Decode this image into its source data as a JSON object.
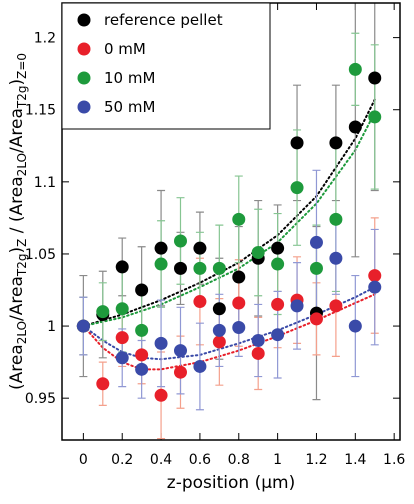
{
  "chart_data": {
    "type": "scatter",
    "xlabel": "z-position (μm)",
    "ylabel_parts": [
      "(Area",
      {
        "sub": "2LO"
      },
      "/Area",
      {
        "sub": "T2g"
      },
      ")",
      {
        "sub": "Z"
      },
      " / (Area",
      {
        "sub": "2LO"
      },
      "/Area",
      {
        "sub": "T2g"
      },
      ")",
      {
        "sub": "Z=0"
      }
    ],
    "x": [
      0,
      0.1,
      0.2,
      0.3,
      0.4,
      0.5,
      0.6,
      0.7,
      0.8,
      0.9,
      1.0,
      1.1,
      1.2,
      1.3,
      1.4,
      1.5
    ],
    "series": [
      {
        "name": "reference pellet",
        "color": "#000000",
        "error_color": "#8a8a8a",
        "values": [
          1.0,
          1.008,
          1.041,
          1.025,
          1.054,
          1.04,
          1.054,
          1.012,
          1.034,
          1.047,
          1.054,
          1.127,
          1.009,
          1.127,
          1.138,
          1.172
        ],
        "errors": [
          0.035,
          0.03,
          0.02,
          0.03,
          0.04,
          0.025,
          0.025,
          0.035,
          0.035,
          0.04,
          0.03,
          0.04,
          0.06,
          0.04,
          0.09,
          0.078
        ]
      },
      {
        "name": "0 mM",
        "color": "#e8202a",
        "error_color": "#f4a08c",
        "values": [
          1.0,
          0.96,
          0.992,
          0.98,
          0.952,
          0.968,
          1.017,
          0.989,
          1.016,
          0.981,
          1.015,
          1.018,
          1.005,
          1.014,
          null,
          1.035
        ],
        "errors": [
          0.02,
          0.015,
          0.02,
          0.02,
          0.03,
          0.025,
          0.03,
          0.03,
          0.03,
          0.025,
          0.03,
          0.03,
          0.025,
          0.035,
          null,
          0.04
        ]
      },
      {
        "name": "10 mM",
        "color": "#1e9a3c",
        "error_color": "#86c592",
        "values": [
          1.0,
          1.01,
          1.012,
          0.997,
          1.043,
          1.059,
          1.04,
          1.04,
          1.074,
          1.051,
          1.043,
          1.096,
          1.04,
          1.074,
          1.178,
          1.145
        ],
        "errors": [
          0.02,
          0.02,
          0.03,
          0.03,
          0.03,
          0.03,
          0.025,
          0.03,
          0.03,
          0.03,
          0.035,
          0.04,
          0.03,
          0.05,
          0.025,
          0.05
        ]
      },
      {
        "name": "50 mM",
        "color": "#3a4aa8",
        "error_color": "#9098d4",
        "values": [
          1.0,
          null,
          0.978,
          0.97,
          0.988,
          0.983,
          0.972,
          0.997,
          0.999,
          0.99,
          0.994,
          1.014,
          1.058,
          1.047,
          1.0,
          1.027
        ],
        "errors": [
          0.02,
          null,
          0.02,
          0.02,
          0.03,
          0.03,
          0.03,
          0.025,
          0.02,
          0.025,
          0.03,
          0.03,
          0.05,
          0.025,
          0.035,
          0.04
        ]
      }
    ],
    "fit_lines": [
      {
        "color": "#000000",
        "x": [
          0,
          0.2,
          0.4,
          0.6,
          0.8,
          1.0,
          1.2,
          1.4,
          1.5
        ],
        "values": [
          1.0,
          1.008,
          1.018,
          1.03,
          1.044,
          1.063,
          1.09,
          1.13,
          1.157
        ]
      },
      {
        "color": "#1e9a3c",
        "x": [
          0,
          0.2,
          0.4,
          0.6,
          0.8,
          1.0,
          1.2,
          1.4,
          1.5
        ],
        "values": [
          1.0,
          1.006,
          1.015,
          1.027,
          1.04,
          1.058,
          1.085,
          1.122,
          1.148
        ]
      },
      {
        "color": "#e8202a",
        "x": [
          0,
          0.1,
          0.2,
          0.3,
          0.4,
          0.6,
          0.8,
          1.0,
          1.2,
          1.4,
          1.5
        ],
        "values": [
          1.0,
          0.985,
          0.975,
          0.97,
          0.97,
          0.975,
          0.983,
          0.993,
          1.004,
          1.016,
          1.022
        ]
      },
      {
        "color": "#3a4aa8",
        "x": [
          0,
          0.1,
          0.2,
          0.3,
          0.4,
          0.6,
          0.8,
          1.0,
          1.2,
          1.4,
          1.5
        ],
        "values": [
          1.0,
          0.99,
          0.982,
          0.978,
          0.977,
          0.98,
          0.988,
          0.997,
          1.008,
          1.02,
          1.027
        ]
      }
    ],
    "xlim": [
      -0.11,
      1.63
    ],
    "ylim": [
      0.921,
      1.224
    ],
    "xticks": [
      0,
      0.2,
      0.4,
      0.6,
      0.8,
      1,
      1.2,
      1.4,
      1.6
    ],
    "yticks": [
      0.95,
      1,
      1.05,
      1.1,
      1.15,
      1.2
    ],
    "legend": "upper-left",
    "grid": false
  }
}
